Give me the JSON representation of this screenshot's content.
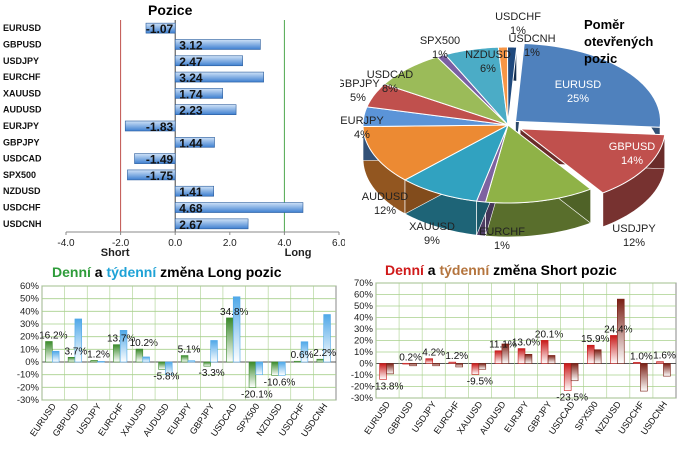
{
  "chart_data": [
    {
      "type": "bar",
      "orientation": "horizontal",
      "title": "Pozice",
      "categories": [
        "EURUSD",
        "GBPUSD",
        "USDJPY",
        "EURCHF",
        "XAUUSD",
        "AUDUSD",
        "EURJPY",
        "GBPJPY",
        "USDCAD",
        "SPX500",
        "NZDUSD",
        "USDCHF",
        "USDCNH"
      ],
      "values": [
        -1.07,
        3.12,
        2.47,
        3.24,
        1.74,
        2.23,
        -1.83,
        1.44,
        -1.49,
        -1.75,
        1.41,
        4.68,
        2.67
      ],
      "value_labels": [
        "-1.07",
        "3.12",
        "2.47",
        "3.24",
        "1.74",
        "2.23",
        "-1.83",
        "1.44",
        "-1.49",
        "-1.75",
        "1.41",
        "4.68",
        "2.67"
      ],
      "xlim": [
        -4.0,
        6.0
      ],
      "xticks": [
        "-4.0",
        "-2.0",
        "0.0",
        "2.0",
        "4.0",
        "6.0"
      ],
      "annotations": [
        "Short",
        "Long"
      ],
      "short_line_value": -2.0,
      "long_line_value": 4.0,
      "colors": {
        "bar": "#3d7fd0",
        "short_line": "#c0504d",
        "long_line": "#4ea84e"
      }
    },
    {
      "type": "pie",
      "title": "Poměr otevřených pozic",
      "title_lines": [
        "Poměr",
        "otevřených",
        "pozic"
      ],
      "slices": [
        {
          "label": "EURUSD",
          "value": 25,
          "text": "25%",
          "color": "#4f81bd"
        },
        {
          "label": "GBPUSD",
          "value": 14,
          "text": "14%",
          "color": "#c0504d"
        },
        {
          "label": "USDJPY",
          "value": 12,
          "text": "12%",
          "color": "#8fb247"
        },
        {
          "label": "EURCHF",
          "value": 1,
          "text": "1%",
          "color": "#7e62a1"
        },
        {
          "label": "XAUUSD",
          "value": 9,
          "text": "9%",
          "color": "#31a2c0"
        },
        {
          "label": "AUDUSD",
          "value": 12,
          "text": "12%",
          "color": "#ec8a33"
        },
        {
          "label": "EURJPY",
          "value": 4,
          "text": "4%",
          "color": "#5b94d8"
        },
        {
          "label": "GBPJPY",
          "value": 5,
          "text": "5%",
          "color": "#c0504d"
        },
        {
          "label": "USDCAD",
          "value": 8,
          "text": "8%",
          "color": "#9bbb59"
        },
        {
          "label": "SPX500",
          "value": 1,
          "text": "1%",
          "color": "#7a5fa3"
        },
        {
          "label": "NZDUSD",
          "value": 6,
          "text": "6%",
          "color": "#4bacc6"
        },
        {
          "label": "USDCHF",
          "value": 1,
          "text": "1%",
          "color": "#f79646"
        },
        {
          "label": "USDCNH",
          "value": 1,
          "text": "1%",
          "color": "#1f497d"
        }
      ]
    },
    {
      "type": "bar",
      "title": "Denní a týdenní změna Long pozic",
      "title_parts": [
        "Denní",
        " a ",
        "týdenní",
        " změna Long pozic"
      ],
      "categories": [
        "EURUSD",
        "GBPUSD",
        "USDJPY",
        "EURCHF",
        "XAUUSD",
        "AUDUSD",
        "EURJPY",
        "GBPJPY",
        "USDCAD",
        "SPX500",
        "NZDUSD",
        "USDCHF",
        "USDCNH"
      ],
      "series": [
        {
          "values": [
            16.2,
            3.7,
            1.2,
            13.7,
            10.2,
            -5.8,
            5.1,
            -3.3,
            34.8,
            -20.1,
            -10.6,
            0.6,
            2.2
          ],
          "color": "#3a8a2a"
        },
        {
          "values": [
            8.5,
            34.0,
            0.5,
            25.0,
            4.0,
            -10.0,
            1.0,
            17.0,
            51.5,
            -10.0,
            -10.5,
            16.0,
            37.5
          ],
          "color": "#4fa8e8"
        }
      ],
      "data_labels": [
        "16.2%",
        "3.7%",
        "1.2%",
        "13.7%",
        "10.2%",
        "-5.8%",
        "5.1%",
        "-3.3%",
        "34.8%",
        "-20.1%",
        "-10.6%",
        "0.6%",
        "2.2%"
      ],
      "ylim": [
        -30,
        60
      ],
      "yticks": [
        "-30%",
        "-20%",
        "-10%",
        "0%",
        "10%",
        "20%",
        "30%",
        "40%",
        "50%",
        "60%"
      ]
    },
    {
      "type": "bar",
      "title": "Denní a týdenní změna Short pozic",
      "title_parts": [
        "Denní",
        " a ",
        "týdenní",
        " změna Short pozic"
      ],
      "categories": [
        "EURUSD",
        "GBPUSD",
        "USDJPY",
        "EURCHF",
        "XAUUSD",
        "AUDUSD",
        "EURJPY",
        "GBPJPY",
        "USDCAD",
        "SPX500",
        "NZDUSD",
        "USDCHF",
        "USDCNH"
      ],
      "series": [
        {
          "values": [
            -13.8,
            0.2,
            4.2,
            1.2,
            -9.5,
            11.1,
            13.0,
            20.1,
            -23.5,
            15.9,
            24.4,
            1.0,
            1.6
          ],
          "color": "#c81818"
        },
        {
          "values": [
            -9.0,
            -2.0,
            -2.0,
            -3.0,
            -5.0,
            17.0,
            8.0,
            7.0,
            -15.0,
            12.0,
            56.0,
            -24.0,
            -11.0
          ],
          "color": "#7a1f14"
        }
      ],
      "data_labels": [
        "-13.8%",
        "0.2%",
        "4.2%",
        "1.2%",
        "-9.5%",
        "11.1%",
        "13.0%",
        "20.1%",
        "-23.5%",
        "15.9%",
        "24.4%",
        "1.0%",
        "1.6%"
      ],
      "ylim": [
        -30,
        70
      ],
      "yticks": [
        "-30%",
        "-20%",
        "-10%",
        "0%",
        "10%",
        "20%",
        "30%",
        "40%",
        "50%",
        "60%",
        "70%"
      ]
    }
  ]
}
